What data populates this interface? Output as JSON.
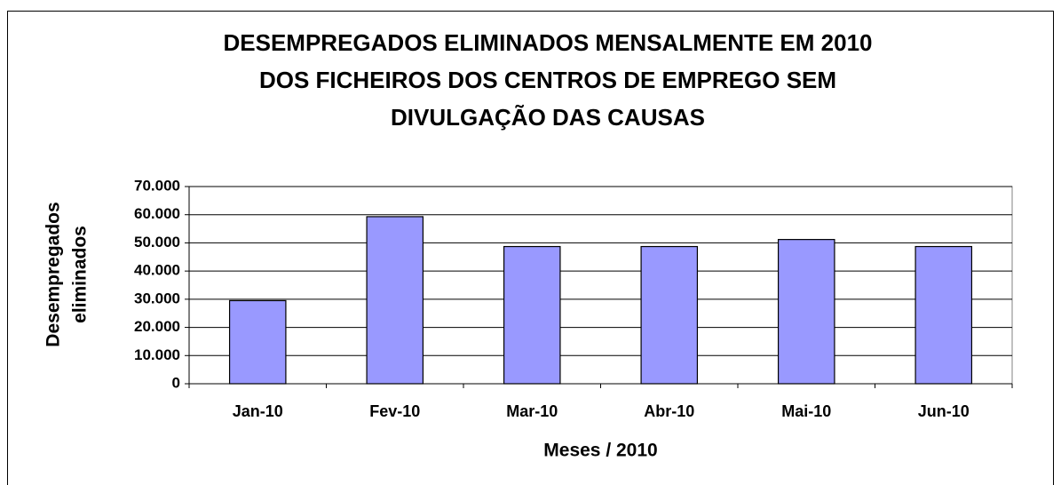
{
  "chart_data": {
    "type": "bar",
    "title": [
      "DESEMPREGADOS ELIMINADOS MENSALMENTE EM 2010",
      "DOS FICHEIROS DOS CENTROS DE EMPREGO SEM",
      "DIVULGAÇÃO DAS CAUSAS"
    ],
    "y_label": [
      "Desempregados",
      "eliminados"
    ],
    "x_label": "Meses / 2010",
    "categories": [
      "Jan-10",
      "Fev-10",
      "Mar-10",
      "Abr-10",
      "Mai-10",
      "Jun-10"
    ],
    "values": [
      29500,
      59300,
      48700,
      48700,
      51200,
      48700
    ],
    "color": "#9999ff",
    "ylim": [
      0,
      70000
    ],
    "yticks": [
      0,
      {
        "value": 10000,
        "label": "10.000"
      },
      {
        "value": 20000,
        "label": "20.000"
      },
      {
        "value": 30000,
        "label": "30.000"
      },
      {
        "value": 40000,
        "label": "40.000"
      },
      {
        "value": 50000,
        "label": "50.000"
      },
      {
        "value": 60000,
        "label": "60.000"
      },
      {
        "value": 70000,
        "label": "70.000"
      }
    ],
    "grid": true
  }
}
